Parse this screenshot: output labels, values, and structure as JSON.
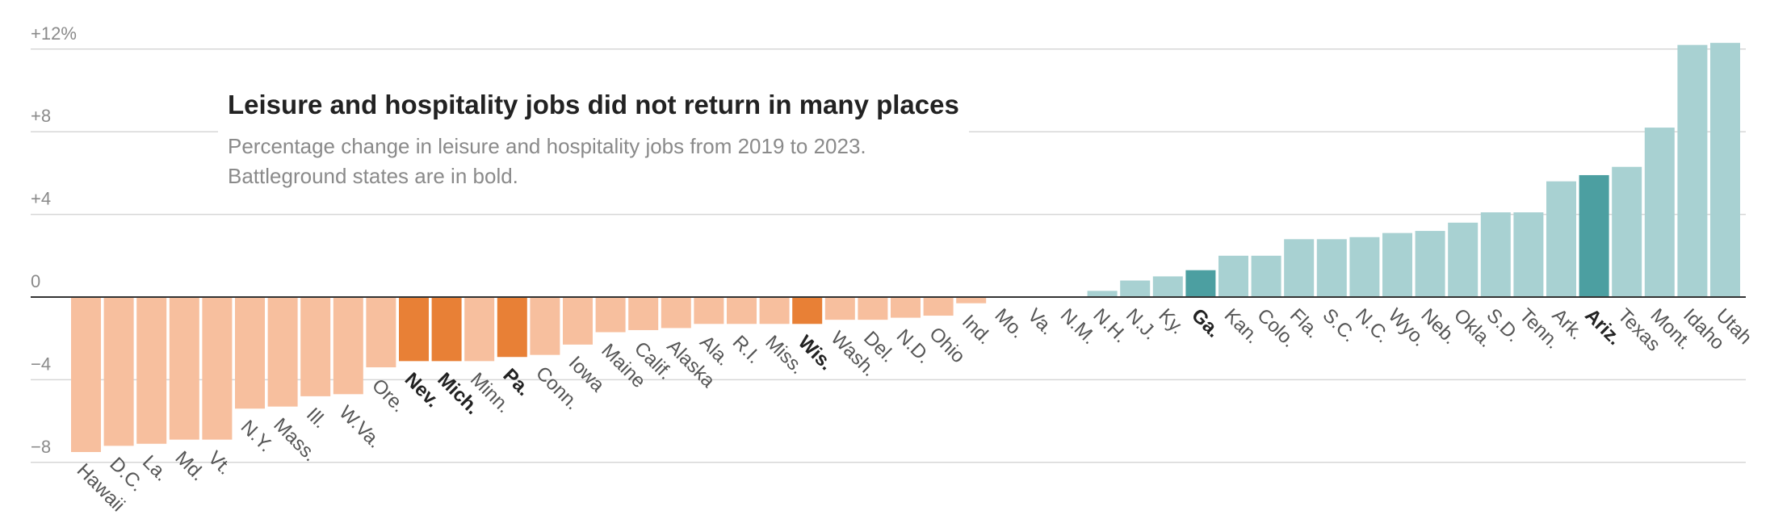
{
  "chart_data": {
    "type": "bar",
    "title": "Leisure and hospitality jobs did not return in many places",
    "subtitle_lines": [
      "Percentage change in leisure and hospitality jobs from 2019 to 2023.",
      "Battleground states are in bold."
    ],
    "xlabel": "",
    "ylabel": "",
    "ylim": [
      -8.8,
      12.6
    ],
    "y_ticks": [
      12,
      8,
      4,
      0,
      -4,
      -8
    ],
    "y_tick_labels": [
      "+12%",
      "+8",
      "+4",
      "0",
      "−4",
      "−8"
    ],
    "grid": true,
    "colors": {
      "negative": "#f7bf9e",
      "negative_battleground": "#e88036",
      "positive": "#a8d1d2",
      "positive_battleground": "#4c9fa1",
      "zero_line": "#333333",
      "gridline": "#d7d7d7"
    },
    "bars": [
      {
        "label": "Hawaii",
        "value": -7.5,
        "battleground": false
      },
      {
        "label": "D.C.",
        "value": -7.2,
        "battleground": false
      },
      {
        "label": "La.",
        "value": -7.1,
        "battleground": false
      },
      {
        "label": "Md.",
        "value": -6.9,
        "battleground": false
      },
      {
        "label": "Vt.",
        "value": -6.9,
        "battleground": false
      },
      {
        "label": "N.Y.",
        "value": -5.4,
        "battleground": false
      },
      {
        "label": "Mass.",
        "value": -5.3,
        "battleground": false
      },
      {
        "label": "Ill.",
        "value": -4.8,
        "battleground": false
      },
      {
        "label": "W.Va.",
        "value": -4.7,
        "battleground": false
      },
      {
        "label": "Ore.",
        "value": -3.4,
        "battleground": false
      },
      {
        "label": "Nev.",
        "value": -3.1,
        "battleground": true
      },
      {
        "label": "Mich.",
        "value": -3.1,
        "battleground": true
      },
      {
        "label": "Minn.",
        "value": -3.1,
        "battleground": false
      },
      {
        "label": "Pa.",
        "value": -2.9,
        "battleground": true
      },
      {
        "label": "Conn.",
        "value": -2.8,
        "battleground": false
      },
      {
        "label": "Iowa",
        "value": -2.3,
        "battleground": false
      },
      {
        "label": "Maine",
        "value": -1.7,
        "battleground": false
      },
      {
        "label": "Calif.",
        "value": -1.6,
        "battleground": false
      },
      {
        "label": "Alaska",
        "value": -1.5,
        "battleground": false
      },
      {
        "label": "Ala.",
        "value": -1.3,
        "battleground": false
      },
      {
        "label": "R.I.",
        "value": -1.3,
        "battleground": false
      },
      {
        "label": "Miss.",
        "value": -1.3,
        "battleground": false
      },
      {
        "label": "Wis.",
        "value": -1.3,
        "battleground": true
      },
      {
        "label": "Wash.",
        "value": -1.1,
        "battleground": false
      },
      {
        "label": "Del.",
        "value": -1.1,
        "battleground": false
      },
      {
        "label": "N.D.",
        "value": -1.0,
        "battleground": false
      },
      {
        "label": "Ohio",
        "value": -0.9,
        "battleground": false
      },
      {
        "label": "Ind.",
        "value": -0.3,
        "battleground": false
      },
      {
        "label": "Mo.",
        "value": 0.0,
        "battleground": false
      },
      {
        "label": "Va.",
        "value": 0.0,
        "battleground": false
      },
      {
        "label": "N.M.",
        "value": 0.0,
        "battleground": false
      },
      {
        "label": "N.H.",
        "value": 0.3,
        "battleground": false
      },
      {
        "label": "N.J.",
        "value": 0.8,
        "battleground": false
      },
      {
        "label": "Ky.",
        "value": 1.0,
        "battleground": false
      },
      {
        "label": "Ga.",
        "value": 1.3,
        "battleground": true
      },
      {
        "label": "Kan.",
        "value": 2.0,
        "battleground": false
      },
      {
        "label": "Colo.",
        "value": 2.0,
        "battleground": false
      },
      {
        "label": "Fla.",
        "value": 2.8,
        "battleground": false
      },
      {
        "label": "S.C.",
        "value": 2.8,
        "battleground": false
      },
      {
        "label": "N.C.",
        "value": 2.9,
        "battleground": false
      },
      {
        "label": "Wyo.",
        "value": 3.1,
        "battleground": false
      },
      {
        "label": "Neb.",
        "value": 3.2,
        "battleground": false
      },
      {
        "label": "Okla.",
        "value": 3.6,
        "battleground": false
      },
      {
        "label": "S.D.",
        "value": 4.1,
        "battleground": false
      },
      {
        "label": "Tenn.",
        "value": 4.1,
        "battleground": false
      },
      {
        "label": "Ark.",
        "value": 5.6,
        "battleground": false
      },
      {
        "label": "Ariz.",
        "value": 5.9,
        "battleground": true
      },
      {
        "label": "Texas",
        "value": 6.3,
        "battleground": false
      },
      {
        "label": "Mont.",
        "value": 8.2,
        "battleground": false
      },
      {
        "label": "Idaho",
        "value": 12.2,
        "battleground": false
      },
      {
        "label": "Utah",
        "value": 12.3,
        "battleground": false
      }
    ]
  }
}
